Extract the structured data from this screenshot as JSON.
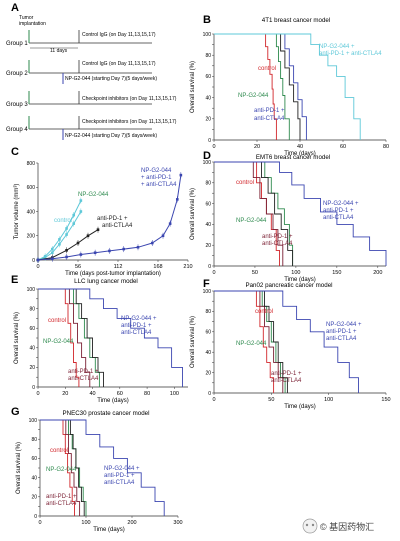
{
  "colors": {
    "control": "#d2262b",
    "np": "#2e8a4e",
    "ab": "#7a1f33",
    "triple": "#3b46b0",
    "teal": "#5ec8d8",
    "black": "#222222",
    "axis": "#333333"
  },
  "panel_a": {
    "letter": "A",
    "implantation": [
      "Tumor",
      "implantation"
    ],
    "groups": [
      {
        "label": "Group 1",
        "text": "Control IgG (on Day 11,13,15,17)",
        "gap": "11 days"
      },
      {
        "label": "Group 2",
        "text": "Control IgG (on Day 11,13,15,17)",
        "text2": "NP-G2-044 (starting Day 7)(5 days/week)"
      },
      {
        "label": "Group 3",
        "text": "Checkpoint inhibitors (on Day 11,13,15,17)"
      },
      {
        "label": "Group 4",
        "text": "Checkpoint inhibitors (on Day 11,13,15,17)",
        "text2": "NP-G2-044 (starting Day 7)(5 days/week)"
      }
    ]
  },
  "chart_data": [
    {
      "panel": "B",
      "type": "line",
      "title": "4T1 breast cancer model",
      "xlabel": "Time (days)",
      "ylabel": "Overall survival (%)",
      "xlim": [
        0,
        80
      ],
      "ylim": [
        0,
        100
      ],
      "xticks": [
        0,
        20,
        40,
        60,
        80
      ],
      "yticks": [
        0,
        10,
        20,
        30,
        40,
        50,
        60,
        70,
        80,
        90,
        100
      ],
      "series": [
        {
          "name": "control",
          "color_key": "control",
          "x": [
            0,
            23,
            24,
            25,
            26,
            27,
            27.5,
            28,
            29
          ],
          "y": [
            100,
            100,
            88,
            76,
            62,
            48,
            34,
            20,
            0
          ]
        },
        {
          "name": "NP-G2-044",
          "color_key": "np",
          "x": [
            0,
            28,
            29,
            30,
            31,
            32,
            33,
            35
          ],
          "y": [
            100,
            100,
            88,
            74,
            58,
            42,
            20,
            0
          ]
        },
        {
          "name": "anti-PD-1 + anti-CTLA4",
          "color_key": "triple",
          "x": [
            0,
            31,
            33,
            35,
            37,
            39,
            41,
            43
          ],
          "y": [
            100,
            100,
            86,
            70,
            54,
            38,
            22,
            0
          ]
        },
        {
          "name": "anti-PD-1 + anti-CTLA4",
          "color_key": "black",
          "x": [
            0,
            29,
            31,
            33,
            35,
            37,
            39,
            40
          ],
          "y": [
            100,
            100,
            84,
            68,
            52,
            36,
            20,
            0
          ]
        },
        {
          "name": "NP-G2-044 + anti-PD-1 + anti-CTLA4",
          "color_key": "teal",
          "x": [
            0,
            41,
            45,
            49,
            53,
            57,
            61,
            65,
            68
          ],
          "y": [
            100,
            100,
            90,
            80,
            70,
            60,
            40,
            20,
            0
          ]
        }
      ],
      "labels": [
        "NP-G2-044 +",
        "anti-PD-1 + anti-CTLA4",
        "control",
        "NP-G2-044",
        "anti-PD-1 +",
        "anti-CTLA4"
      ]
    },
    {
      "panel": "C",
      "type": "line",
      "title": "",
      "xlabel": "Time (days post-tumor implantation)",
      "ylabel": "Tumor volume (mm³)",
      "xlim": [
        0,
        210
      ],
      "ylim": [
        0,
        800
      ],
      "xticks": [
        0,
        56,
        112,
        168,
        210
      ],
      "yticks": [
        0,
        200,
        400,
        600,
        800
      ],
      "series": [
        {
          "name": "control",
          "color_key": "teal",
          "x": [
            0,
            10,
            20,
            30,
            40,
            50,
            60
          ],
          "y": [
            0,
            20,
            60,
            130,
            210,
            300,
            400
          ]
        },
        {
          "name": "NP-G2-044",
          "color_key": "teal",
          "x": [
            0,
            10,
            20,
            30,
            40,
            50,
            60
          ],
          "y": [
            0,
            30,
            90,
            170,
            260,
            370,
            490
          ]
        },
        {
          "name": "anti-PD-1 + anti-CTLA4",
          "color_key": "black",
          "x": [
            0,
            20,
            40,
            56,
            70,
            84
          ],
          "y": [
            0,
            20,
            80,
            140,
            200,
            250
          ]
        },
        {
          "name": "NP-G2-044 + anti-PD-1 + anti-CTLA4",
          "color_key": "triple",
          "x": [
            0,
            20,
            40,
            60,
            80,
            100,
            120,
            140,
            160,
            175,
            185,
            195,
            200
          ],
          "y": [
            0,
            10,
            25,
            45,
            60,
            75,
            90,
            105,
            140,
            200,
            300,
            500,
            700
          ]
        }
      ],
      "labels": [
        "NP-G2-044",
        "control",
        "anti-PD-1 +",
        "anti-CTLA4",
        "NP-G2-044",
        "+ anti-PD-1",
        "+ anti-CTLA4"
      ]
    },
    {
      "panel": "D",
      "type": "line",
      "title": "EMT6 breast cancer model",
      "xlabel": "Time (days)",
      "ylabel": "Overall survival (%)",
      "xlim": [
        0,
        210
      ],
      "ylim": [
        0,
        100
      ],
      "xticks": [
        0,
        50,
        100,
        150,
        200
      ],
      "yticks": [
        0,
        10,
        20,
        30,
        40,
        50,
        60,
        70,
        80,
        90,
        100
      ],
      "series": [
        {
          "name": "control",
          "color_key": "control",
          "x": [
            0,
            45,
            52,
            58,
            64,
            70,
            76,
            80
          ],
          "y": [
            100,
            100,
            80,
            65,
            50,
            35,
            15,
            0
          ]
        },
        {
          "name": "NP-G2-044",
          "color_key": "np",
          "x": [
            0,
            55,
            62,
            70,
            78,
            86,
            92,
            96
          ],
          "y": [
            100,
            100,
            85,
            70,
            55,
            40,
            20,
            0
          ]
        },
        {
          "name": "anti-PD-1 + anti-CTLA4",
          "color_key": "ab",
          "x": [
            0,
            40,
            48,
            56,
            64,
            72,
            78,
            84
          ],
          "y": [
            100,
            100,
            85,
            65,
            50,
            35,
            20,
            0
          ]
        },
        {
          "name": "anti-PD-1 + anti-CTLA4",
          "color_key": "black",
          "x": [
            0,
            50,
            58,
            66,
            74,
            82,
            90,
            96
          ],
          "y": [
            100,
            100,
            85,
            70,
            50,
            35,
            15,
            0
          ]
        },
        {
          "name": "NP-G2-044 + anti-PD-1 + anti-CTLA4",
          "color_key": "triple",
          "x": [
            0,
            70,
            80,
            95,
            110,
            130,
            150,
            170,
            190,
            210
          ],
          "y": [
            100,
            100,
            90,
            78,
            65,
            52,
            40,
            28,
            15,
            0
          ]
        }
      ],
      "labels": [
        "control",
        "NP-G2-044",
        "anti-PD-1 +",
        "anti-CTLA4",
        "NP-G2-044 +",
        "anti-PD-1 +",
        "anti-CTLA4"
      ]
    },
    {
      "panel": "E",
      "type": "line",
      "title": "LLC lung cancer model",
      "xlabel": "Time (days)",
      "ylabel": "Overall survival (%)",
      "xlim": [
        0,
        110
      ],
      "ylim": [
        0,
        100
      ],
      "xticks": [
        0,
        20,
        40,
        60,
        80,
        100
      ],
      "yticks": [
        0,
        10,
        20,
        30,
        40,
        50,
        60,
        70,
        80,
        90,
        100
      ],
      "series": [
        {
          "name": "control",
          "color_key": "control",
          "x": [
            0,
            18,
            20,
            22,
            24,
            26,
            28,
            30
          ],
          "y": [
            100,
            100,
            85,
            65,
            45,
            25,
            10,
            0
          ]
        },
        {
          "name": "NP-G2-044",
          "color_key": "np",
          "x": [
            0,
            22,
            26,
            30,
            34,
            38,
            42,
            45
          ],
          "y": [
            100,
            100,
            85,
            70,
            50,
            30,
            15,
            0
          ]
        },
        {
          "name": "anti-PD-1 + anti-CTLA4",
          "color_key": "ab",
          "x": [
            0,
            20,
            23,
            26,
            29,
            32,
            35,
            38
          ],
          "y": [
            100,
            100,
            85,
            65,
            45,
            30,
            15,
            0
          ]
        },
        {
          "name": "anti-PD-1 + anti-CTLA4",
          "color_key": "black",
          "x": [
            0,
            24,
            28,
            32,
            36,
            40,
            44,
            48
          ],
          "y": [
            100,
            100,
            85,
            70,
            50,
            30,
            15,
            0
          ]
        },
        {
          "name": "NP-G2-044 + anti-PD-1 + anti-CTLA4",
          "color_key": "triple",
          "x": [
            0,
            30,
            38,
            48,
            58,
            68,
            78,
            88,
            98,
            106
          ],
          "y": [
            100,
            100,
            90,
            80,
            70,
            60,
            50,
            40,
            20,
            0
          ]
        }
      ],
      "labels": [
        "control",
        "NP-G2-044",
        "anti-PD-1 +",
        "anti-CTLA4",
        "NP-G2-044 +",
        "anti-PD-1 +",
        "anti-CTLA4"
      ]
    },
    {
      "panel": "F",
      "type": "line",
      "title": "Pan02 pancreatic cancer model",
      "xlabel": "Time (days)",
      "ylabel": "Overall survival (%)",
      "xlim": [
        0,
        150
      ],
      "ylim": [
        0,
        100
      ],
      "xticks": [
        0,
        50,
        100,
        150
      ],
      "yticks": [
        0,
        10,
        20,
        30,
        40,
        50,
        60,
        70,
        80,
        90,
        100
      ],
      "series": [
        {
          "name": "control",
          "color_key": "control",
          "x": [
            0,
            34,
            37,
            40,
            43,
            46,
            49,
            52
          ],
          "y": [
            100,
            100,
            85,
            65,
            45,
            30,
            15,
            0
          ]
        },
        {
          "name": "NP-G2-044",
          "color_key": "np",
          "x": [
            0,
            38,
            42,
            46,
            50,
            54,
            58,
            62
          ],
          "y": [
            100,
            100,
            85,
            70,
            50,
            30,
            15,
            0
          ]
        },
        {
          "name": "anti-PD-1 + anti-CTLA4",
          "color_key": "ab",
          "x": [
            0,
            36,
            40,
            44,
            48,
            52,
            56,
            60
          ],
          "y": [
            100,
            100,
            85,
            65,
            45,
            30,
            15,
            0
          ]
        },
        {
          "name": "anti-PD-1 + anti-CTLA4",
          "color_key": "black",
          "x": [
            0,
            40,
            44,
            48,
            52,
            56,
            60,
            64
          ],
          "y": [
            100,
            100,
            85,
            70,
            50,
            30,
            15,
            0
          ]
        },
        {
          "name": "NP-G2-044 + anti-PD-1 + anti-CTLA4",
          "color_key": "triple",
          "x": [
            0,
            50,
            60,
            72,
            84,
            96,
            108,
            118,
            126
          ],
          "y": [
            100,
            100,
            85,
            72,
            60,
            45,
            30,
            15,
            0
          ]
        }
      ],
      "labels": [
        "NP-G2-044",
        "control",
        "NP-G2-044 +",
        "anti-PD-1 +",
        "anti-CTLA4",
        "anti-PD-1 +",
        "anti-CTLA4"
      ]
    },
    {
      "panel": "G",
      "type": "line",
      "title": "PNEC30 prostate cancer model",
      "xlabel": "Time (days)",
      "ylabel": "Overall survival (%)",
      "xlim": [
        0,
        300
      ],
      "ylim": [
        0,
        100
      ],
      "xticks": [
        0,
        100,
        200,
        300
      ],
      "yticks": [
        0,
        10,
        20,
        30,
        40,
        50,
        60,
        70,
        80,
        90,
        100
      ],
      "series": [
        {
          "name": "control",
          "color_key": "control",
          "x": [
            0,
            45,
            50,
            55,
            60,
            65,
            70,
            75
          ],
          "y": [
            100,
            100,
            85,
            65,
            45,
            30,
            15,
            0
          ]
        },
        {
          "name": "NP-G2-044",
          "color_key": "np",
          "x": [
            0,
            55,
            62,
            70,
            78,
            86,
            94,
            100
          ],
          "y": [
            100,
            100,
            85,
            70,
            50,
            30,
            15,
            0
          ]
        },
        {
          "name": "anti-PD-1 + anti-CTLA4",
          "color_key": "ab",
          "x": [
            0,
            50,
            56,
            62,
            68,
            74,
            80,
            86
          ],
          "y": [
            100,
            100,
            85,
            65,
            45,
            30,
            15,
            0
          ]
        },
        {
          "name": "anti-PD-1 + anti-CTLA4",
          "color_key": "black",
          "x": [
            0,
            60,
            66,
            72,
            78,
            84,
            90,
            96
          ],
          "y": [
            100,
            100,
            85,
            70,
            50,
            30,
            15,
            0
          ]
        },
        {
          "name": "NP-G2-044 + anti-PD-1 + anti-CTLA4",
          "color_key": "triple",
          "x": [
            0,
            80,
            100,
            130,
            160,
            190,
            220,
            250,
            270
          ],
          "y": [
            100,
            100,
            85,
            72,
            60,
            45,
            30,
            15,
            0
          ]
        }
      ],
      "labels": [
        "control",
        "NP-G2-044",
        "anti-PD-1 +",
        "anti-CTLA4",
        "NP-G2-044 +",
        "anti-PD-1 +",
        "anti-CTLA4"
      ]
    }
  ],
  "watermark": "© 基因药物汇"
}
